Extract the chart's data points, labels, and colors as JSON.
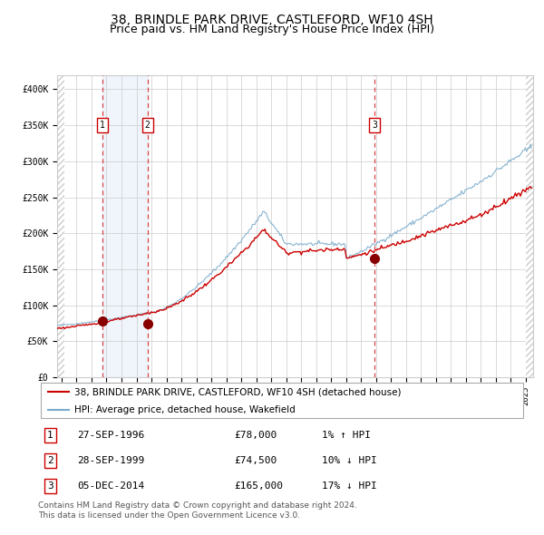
{
  "title": "38, BRINDLE PARK DRIVE, CASTLEFORD, WF10 4SH",
  "subtitle": "Price paid vs. HM Land Registry's House Price Index (HPI)",
  "ylim": [
    0,
    420000
  ],
  "yticks": [
    0,
    50000,
    100000,
    150000,
    200000,
    250000,
    300000,
    350000,
    400000
  ],
  "ytick_labels": [
    "£0",
    "£50K",
    "£100K",
    "£150K",
    "£200K",
    "£250K",
    "£300K",
    "£350K",
    "£400K"
  ],
  "xlim_start": 1993.7,
  "xlim_end": 2025.5,
  "sale_dates": [
    1996.74,
    1999.74,
    2014.92
  ],
  "sale_prices": [
    78000,
    74500,
    165000
  ],
  "sale_labels": [
    "1",
    "2",
    "3"
  ],
  "red_line_color": "#cc0000",
  "blue_line_color": "#7aabcc",
  "marker_color": "#880000",
  "dashed_line_color": "#dd4444",
  "shade_color": "#ddeeff",
  "grid_color": "#cccccc",
  "background_color": "#ffffff",
  "hatch_color": "#cccccc",
  "legend_red_label": "38, BRINDLE PARK DRIVE, CASTLEFORD, WF10 4SH (detached house)",
  "legend_blue_label": "HPI: Average price, detached house, Wakefield",
  "table_rows": [
    [
      "1",
      "27-SEP-1996",
      "£78,000",
      "1% ↑ HPI"
    ],
    [
      "2",
      "28-SEP-1999",
      "£74,500",
      "10% ↓ HPI"
    ],
    [
      "3",
      "05-DEC-2014",
      "£165,000",
      "17% ↓ HPI"
    ]
  ],
  "footnote": "Contains HM Land Registry data © Crown copyright and database right 2024.\nThis data is licensed under the Open Government Licence v3.0.",
  "title_fontsize": 10,
  "subtitle_fontsize": 9,
  "tick_fontsize": 7,
  "legend_fontsize": 7.5,
  "table_fontsize": 8,
  "footnote_fontsize": 6.5
}
